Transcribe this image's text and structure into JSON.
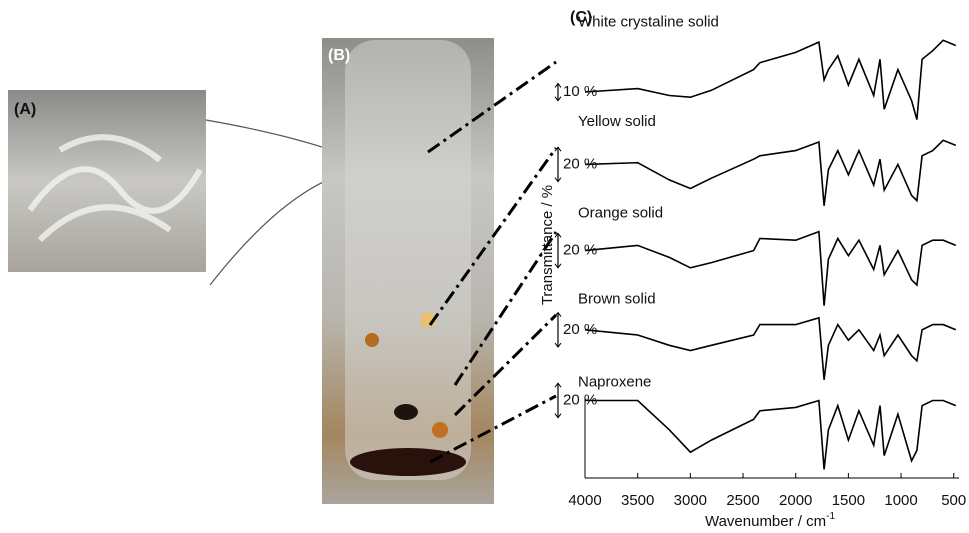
{
  "panels": [
    "(A)",
    "(B)",
    "(C)"
  ],
  "chart_data": {
    "type": "line",
    "x_label": "Wavenumber / cm",
    "x_label_superscript": "-1",
    "y_label": "Transmittance / %",
    "xlim": [
      4000,
      450
    ],
    "xticks": [
      4000,
      3500,
      3000,
      2500,
      2000,
      1500,
      1000,
      500
    ],
    "ylim": [
      0,
      260
    ],
    "x": [
      4000,
      3500,
      3200,
      3000,
      2800,
      2400,
      2340,
      2000,
      1780,
      1730,
      1690,
      1600,
      1500,
      1400,
      1260,
      1200,
      1160,
      1030,
      900,
      850,
      800,
      700,
      600,
      480
    ],
    "series": [
      {
        "name": "White crystaline solid",
        "color": "#000000",
        "values": [
          224,
          226,
          222,
          221,
          225,
          237,
          241,
          247,
          253,
          231,
          237,
          245,
          228,
          243,
          222,
          243,
          214,
          237,
          219,
          208,
          243,
          248,
          254,
          251
        ]
      },
      {
        "name": "Yellow solid",
        "color": "#000000",
        "values": [
          182,
          183,
          173,
          168,
          174,
          185,
          187,
          190,
          195,
          158,
          179,
          190,
          176,
          190,
          170,
          185,
          167,
          182,
          164,
          161,
          187,
          190,
          196,
          193
        ]
      },
      {
        "name": "Orange solid",
        "color": "#000000",
        "values": [
          132,
          135,
          128,
          122,
          125,
          132,
          139,
          138,
          143,
          100,
          127,
          139,
          129,
          138,
          121,
          135,
          118,
          132,
          115,
          112,
          135,
          138,
          138,
          135
        ]
      },
      {
        "name": "Brown solid",
        "color": "#000000",
        "values": [
          86,
          83,
          77,
          74,
          77,
          83,
          89,
          89,
          93,
          57,
          77,
          89,
          80,
          86,
          74,
          83,
          71,
          83,
          71,
          68,
          86,
          89,
          89,
          86
        ]
      },
      {
        "name": "Naproxene",
        "color": "#000000",
        "values": [
          45,
          45,
          28,
          15,
          22,
          34,
          39,
          41,
          45,
          5,
          28,
          42,
          22,
          39,
          19,
          42,
          13,
          37,
          10,
          16,
          42,
          45,
          45,
          42
        ]
      }
    ],
    "scale_bars": [
      {
        "value": 10,
        "label": "10 %"
      },
      {
        "value": 20,
        "label": "20 %"
      },
      {
        "value": 20,
        "label": "20 %"
      },
      {
        "value": 20,
        "label": "20 %"
      },
      {
        "value": 20,
        "label": "20 %"
      }
    ]
  }
}
